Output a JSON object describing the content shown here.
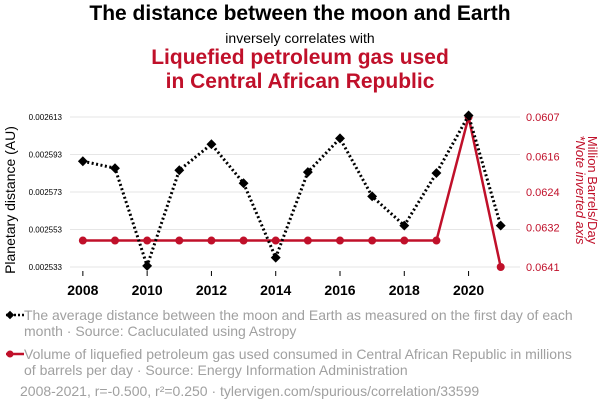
{
  "header": {
    "title": "The distance between the moon and Earth",
    "subtitle": "inversely correlates with",
    "title2_line1": "Liquefied petroleum gas used",
    "title2_line2": "in Central African Republic"
  },
  "legend": {
    "series1": "The average distance between the moon and Earth as measured on the first day of each month · Source: Cacluculated using Astropy",
    "series2": "Volume of liquefied petroleum gas used consumed in Central African Republic in millions of barrels per day · Source: Energy Information Administration"
  },
  "footer": "2008-2021, r=-0.500, r²=0.250 · tylervigen.com/spurious/correlation/33599",
  "colors": {
    "series1": "#000000",
    "series2": "#c0102a",
    "grid": "#e6e6e6"
  },
  "chart_data": {
    "type": "line",
    "x": [
      2008,
      2009,
      2010,
      2011,
      2012,
      2013,
      2014,
      2015,
      2016,
      2017,
      2018,
      2019,
      2020,
      2021
    ],
    "x_ticks": [
      "2008",
      "2010",
      "2012",
      "2014",
      "2016",
      "2018",
      "2020"
    ],
    "xlim": [
      2007.6,
      2021.6
    ],
    "series": [
      {
        "name": "Planetary distance (AU)",
        "axis": "left",
        "style": "dotted",
        "marker": "diamond",
        "values": [
          0.0025894,
          0.0025857,
          0.0025336,
          0.0025846,
          0.0025985,
          0.0025777,
          0.002538,
          0.0025836,
          0.0026016,
          0.0025707,
          0.0025551,
          0.0025831,
          0.0026138,
          0.0025551
        ]
      },
      {
        "name": "Liquefied petroleum gas (Million Barrels/Day)",
        "axis": "right",
        "style": "solid",
        "marker": "circle",
        "values": [
          0.0635,
          0.0635,
          0.0635,
          0.0635,
          0.0635,
          0.0635,
          0.0635,
          0.0635,
          0.0635,
          0.0635,
          0.0635,
          0.0635,
          0.0607,
          0.0641
        ]
      }
    ],
    "left_axis": {
      "label": "Planetary distance (AU)",
      "ticks": [
        "0.002533",
        "0.002553",
        "0.002573",
        "0.002593",
        "0.002613"
      ],
      "range": [
        0.002533,
        0.002613
      ]
    },
    "right_axis": {
      "label": "Million Barrels/Day",
      "label2": "*Note inverted axis",
      "inverted": true,
      "ticks": [
        "0.0607",
        "0.0616",
        "0.0624",
        "0.0632",
        "0.0641"
      ],
      "range": [
        0.0607,
        0.0641
      ]
    }
  }
}
